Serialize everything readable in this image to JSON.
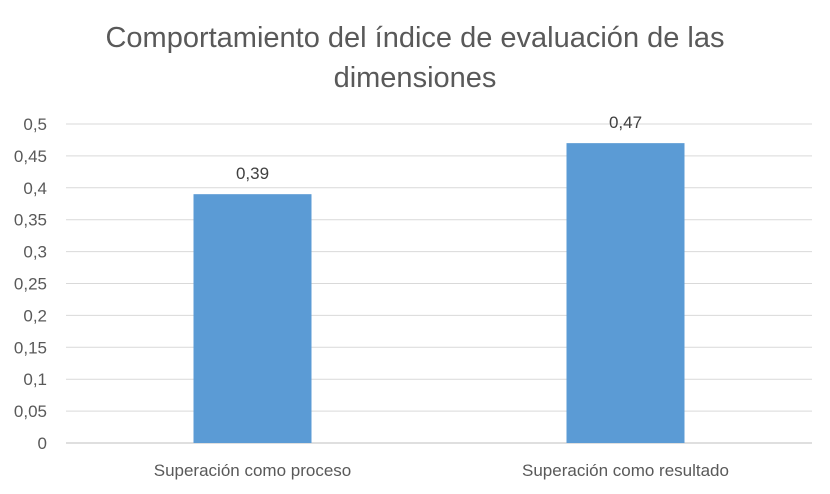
{
  "chart_data": {
    "type": "bar",
    "title_lines": [
      "Comportamiento del índice de evaluación de las",
      "dimensiones"
    ],
    "categories": [
      "Superación como proceso",
      "Superación como resultado"
    ],
    "values": [
      0.39,
      0.47
    ],
    "data_labels": [
      "0,39",
      "0,47"
    ],
    "ylim": [
      0,
      0.5
    ],
    "yticks": [
      0,
      0.05,
      0.1,
      0.15,
      0.2,
      0.25,
      0.3,
      0.35,
      0.4,
      0.45,
      0.5
    ],
    "ytick_labels": [
      "0",
      "0,05",
      "0,1",
      "0,15",
      "0,2",
      "0,25",
      "0,3",
      "0,35",
      "0,4",
      "0,45",
      "0,5"
    ],
    "grid": true,
    "legend": "none",
    "bar_color": "#5B9BD5",
    "grid_color": "#D9D9D9"
  }
}
